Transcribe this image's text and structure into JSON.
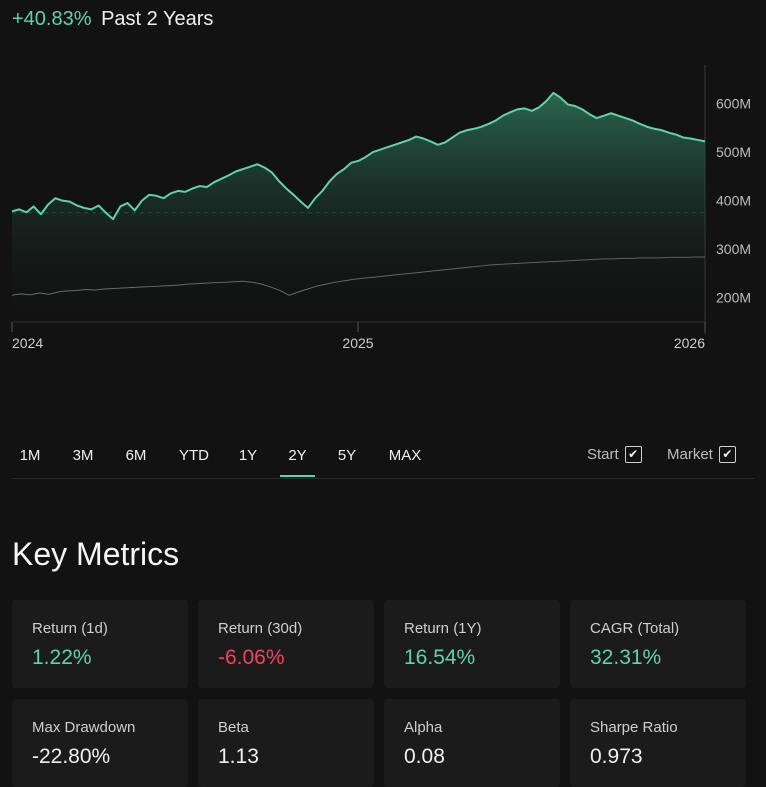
{
  "header": {
    "change": "+40.83%",
    "period": "Past 2 Years"
  },
  "chart_data": {
    "type": "line",
    "y_ticks": [
      "600M",
      "500M",
      "400M",
      "300M",
      "200M"
    ],
    "x_ticks": [
      "2024",
      "2025",
      "2026"
    ],
    "series": [
      {
        "values": [
          378,
          382,
          376,
          388,
          372,
          392,
          405,
          400,
          398,
          390,
          385,
          382,
          390,
          375,
          362,
          388,
          395,
          380,
          400,
          412,
          410,
          405,
          415,
          420,
          418,
          425,
          430,
          428,
          438,
          445,
          452,
          460,
          465,
          470,
          475,
          468,
          458,
          440,
          425,
          412,
          398,
          385,
          405,
          420,
          440,
          455,
          465,
          478,
          482,
          490,
          500,
          505,
          510,
          515,
          520,
          525,
          532,
          528,
          522,
          515,
          520,
          530,
          540,
          545,
          548,
          552,
          558,
          565,
          575,
          582,
          588,
          590,
          585,
          592,
          605,
          622,
          612,
          598,
          595,
          588,
          578,
          570,
          575,
          580,
          575,
          570,
          565,
          558,
          552,
          548,
          545,
          540,
          536,
          530,
          528,
          525,
          522
        ]
      },
      {
        "values": [
          205,
          208,
          206,
          210,
          207,
          212,
          214,
          215,
          217,
          216,
          218,
          219,
          220,
          221,
          222,
          223,
          224,
          225,
          226,
          228,
          229,
          230,
          231,
          232,
          233,
          234,
          232,
          228,
          222,
          215,
          205,
          212,
          218,
          224,
          228,
          232,
          235,
          238,
          240,
          242,
          244,
          246,
          248,
          250,
          252,
          254,
          256,
          258,
          260,
          262,
          264,
          266,
          268,
          269,
          270,
          271,
          272,
          273,
          274,
          275,
          276,
          277,
          278,
          279,
          280,
          280,
          281,
          281,
          282,
          282,
          282,
          283,
          283,
          283,
          284,
          284
        ]
      }
    ],
    "baseline": 375,
    "ylim": [
      150,
      700
    ]
  },
  "ranges": [
    "1M",
    "3M",
    "6M",
    "YTD",
    "1Y",
    "2Y",
    "5Y",
    "MAX"
  ],
  "active_range": "2Y",
  "toggles": {
    "start": "Start",
    "market": "Market"
  },
  "section_title": "Key Metrics",
  "metrics": [
    {
      "label": "Return (1d)",
      "value": "1.22%",
      "tone": "pos"
    },
    {
      "label": "Return (30d)",
      "value": "-6.06%",
      "tone": "neg"
    },
    {
      "label": "Return (1Y)",
      "value": "16.54%",
      "tone": "pos"
    },
    {
      "label": "CAGR (Total)",
      "value": "32.31%",
      "tone": "pos"
    },
    {
      "label": "Max Drawdown",
      "value": "-22.80%",
      "tone": "neu"
    },
    {
      "label": "Beta",
      "value": "1.13",
      "tone": "neu"
    },
    {
      "label": "Alpha",
      "value": "0.08",
      "tone": "neu"
    },
    {
      "label": "Sharpe Ratio",
      "value": "0.973",
      "tone": "neu"
    }
  ]
}
